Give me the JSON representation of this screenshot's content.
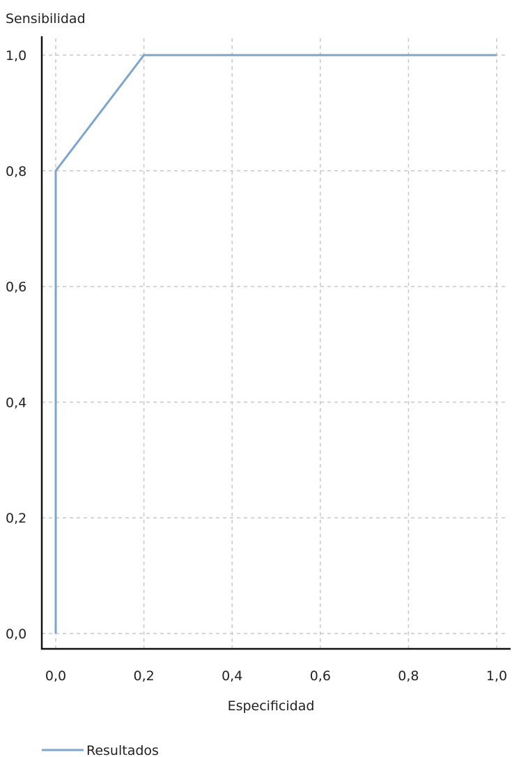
{
  "chart_data": {
    "type": "line",
    "ylabel": "Sensibilidad",
    "xlabel": "Especificidad",
    "xlim": [
      0,
      1
    ],
    "ylim": [
      0,
      1
    ],
    "xticks": [
      0,
      0.2,
      0.4,
      0.6,
      0.8,
      1.0
    ],
    "yticks": [
      0,
      0.2,
      0.4,
      0.6,
      0.8,
      1.0
    ],
    "xtick_labels": [
      "0,0",
      "0,2",
      "0,4",
      "0,6",
      "0,8",
      "1,0"
    ],
    "ytick_labels": [
      "0,0",
      "0,2",
      "0,4",
      "0,6",
      "0,8",
      "1,0"
    ],
    "grid": true,
    "legend_position": "bottom-left",
    "series": [
      {
        "name": "Resultados",
        "color": "#7ea6cd",
        "x": [
          0,
          0,
          0.2,
          1.0
        ],
        "y": [
          0,
          0.8,
          1.0,
          1.0
        ]
      }
    ]
  }
}
